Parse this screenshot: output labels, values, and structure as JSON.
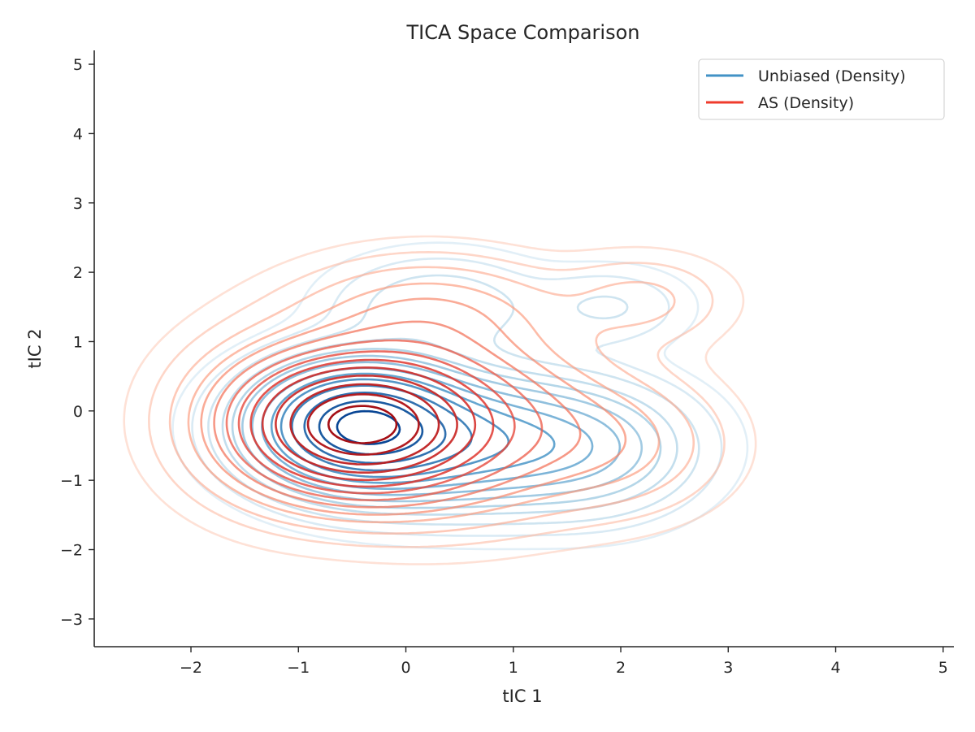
{
  "chart_data": {
    "type": "contour",
    "title": "TICA Space Comparison",
    "xlabel": "tIC 1",
    "ylabel": "tIC 2",
    "xlim": [
      -2.9,
      5.1
    ],
    "ylim": [
      -3.4,
      5.2
    ],
    "x_ticks": [
      -2,
      -1,
      0,
      1,
      2,
      3,
      4,
      5
    ],
    "y_ticks": [
      -3,
      -2,
      -1,
      0,
      1,
      2,
      3,
      4,
      5
    ],
    "x_tick_labels": [
      "−2",
      "−1",
      "0",
      "1",
      "2",
      "3",
      "4",
      "5"
    ],
    "y_tick_labels": [
      "−3",
      "−2",
      "−1",
      "0",
      "1",
      "2",
      "3",
      "4",
      "5"
    ],
    "grid": false,
    "legend_position": "top-right",
    "series": [
      {
        "name": "Unbiased (Density)",
        "color": "#4292c6",
        "colormap": "Blues",
        "components": [
          {
            "weight": 1.0,
            "mx": -0.45,
            "my": -0.2,
            "sx": 0.55,
            "sy": 0.5
          },
          {
            "weight": 0.45,
            "mx": 0.6,
            "my": -0.45,
            "sx": 0.85,
            "sy": 0.55
          },
          {
            "weight": 0.12,
            "mx": 1.8,
            "my": -0.6,
            "sx": 0.55,
            "sy": 0.55
          },
          {
            "weight": 0.08,
            "mx": 0.3,
            "my": 1.5,
            "sx": 0.6,
            "sy": 0.45
          },
          {
            "weight": 0.05,
            "mx": 1.9,
            "my": 1.5,
            "sx": 0.45,
            "sy": 0.35
          }
        ]
      },
      {
        "name": "AS (Density)",
        "color": "#ef3b2c",
        "colormap": "Reds",
        "components": [
          {
            "weight": 1.0,
            "mx": -0.45,
            "my": -0.2,
            "sx": 0.6,
            "sy": 0.55
          },
          {
            "weight": 0.35,
            "mx": 0.3,
            "my": -0.2,
            "sx": 0.9,
            "sy": 0.75
          },
          {
            "weight": 0.12,
            "mx": -1.2,
            "my": -0.1,
            "sx": 0.6,
            "sy": 0.75
          },
          {
            "weight": 0.12,
            "mx": 0.2,
            "my": 1.4,
            "sx": 0.75,
            "sy": 0.5
          },
          {
            "weight": 0.08,
            "mx": 2.0,
            "my": -0.5,
            "sx": 0.6,
            "sy": 0.6
          },
          {
            "weight": 0.06,
            "mx": 2.2,
            "my": 1.6,
            "sx": 0.5,
            "sy": 0.4
          }
        ]
      }
    ],
    "levels": [
      0.008,
      0.02,
      0.04,
      0.07,
      0.1,
      0.14,
      0.19,
      0.25,
      0.32,
      0.4,
      0.5,
      0.62,
      0.76,
      0.9
    ]
  }
}
